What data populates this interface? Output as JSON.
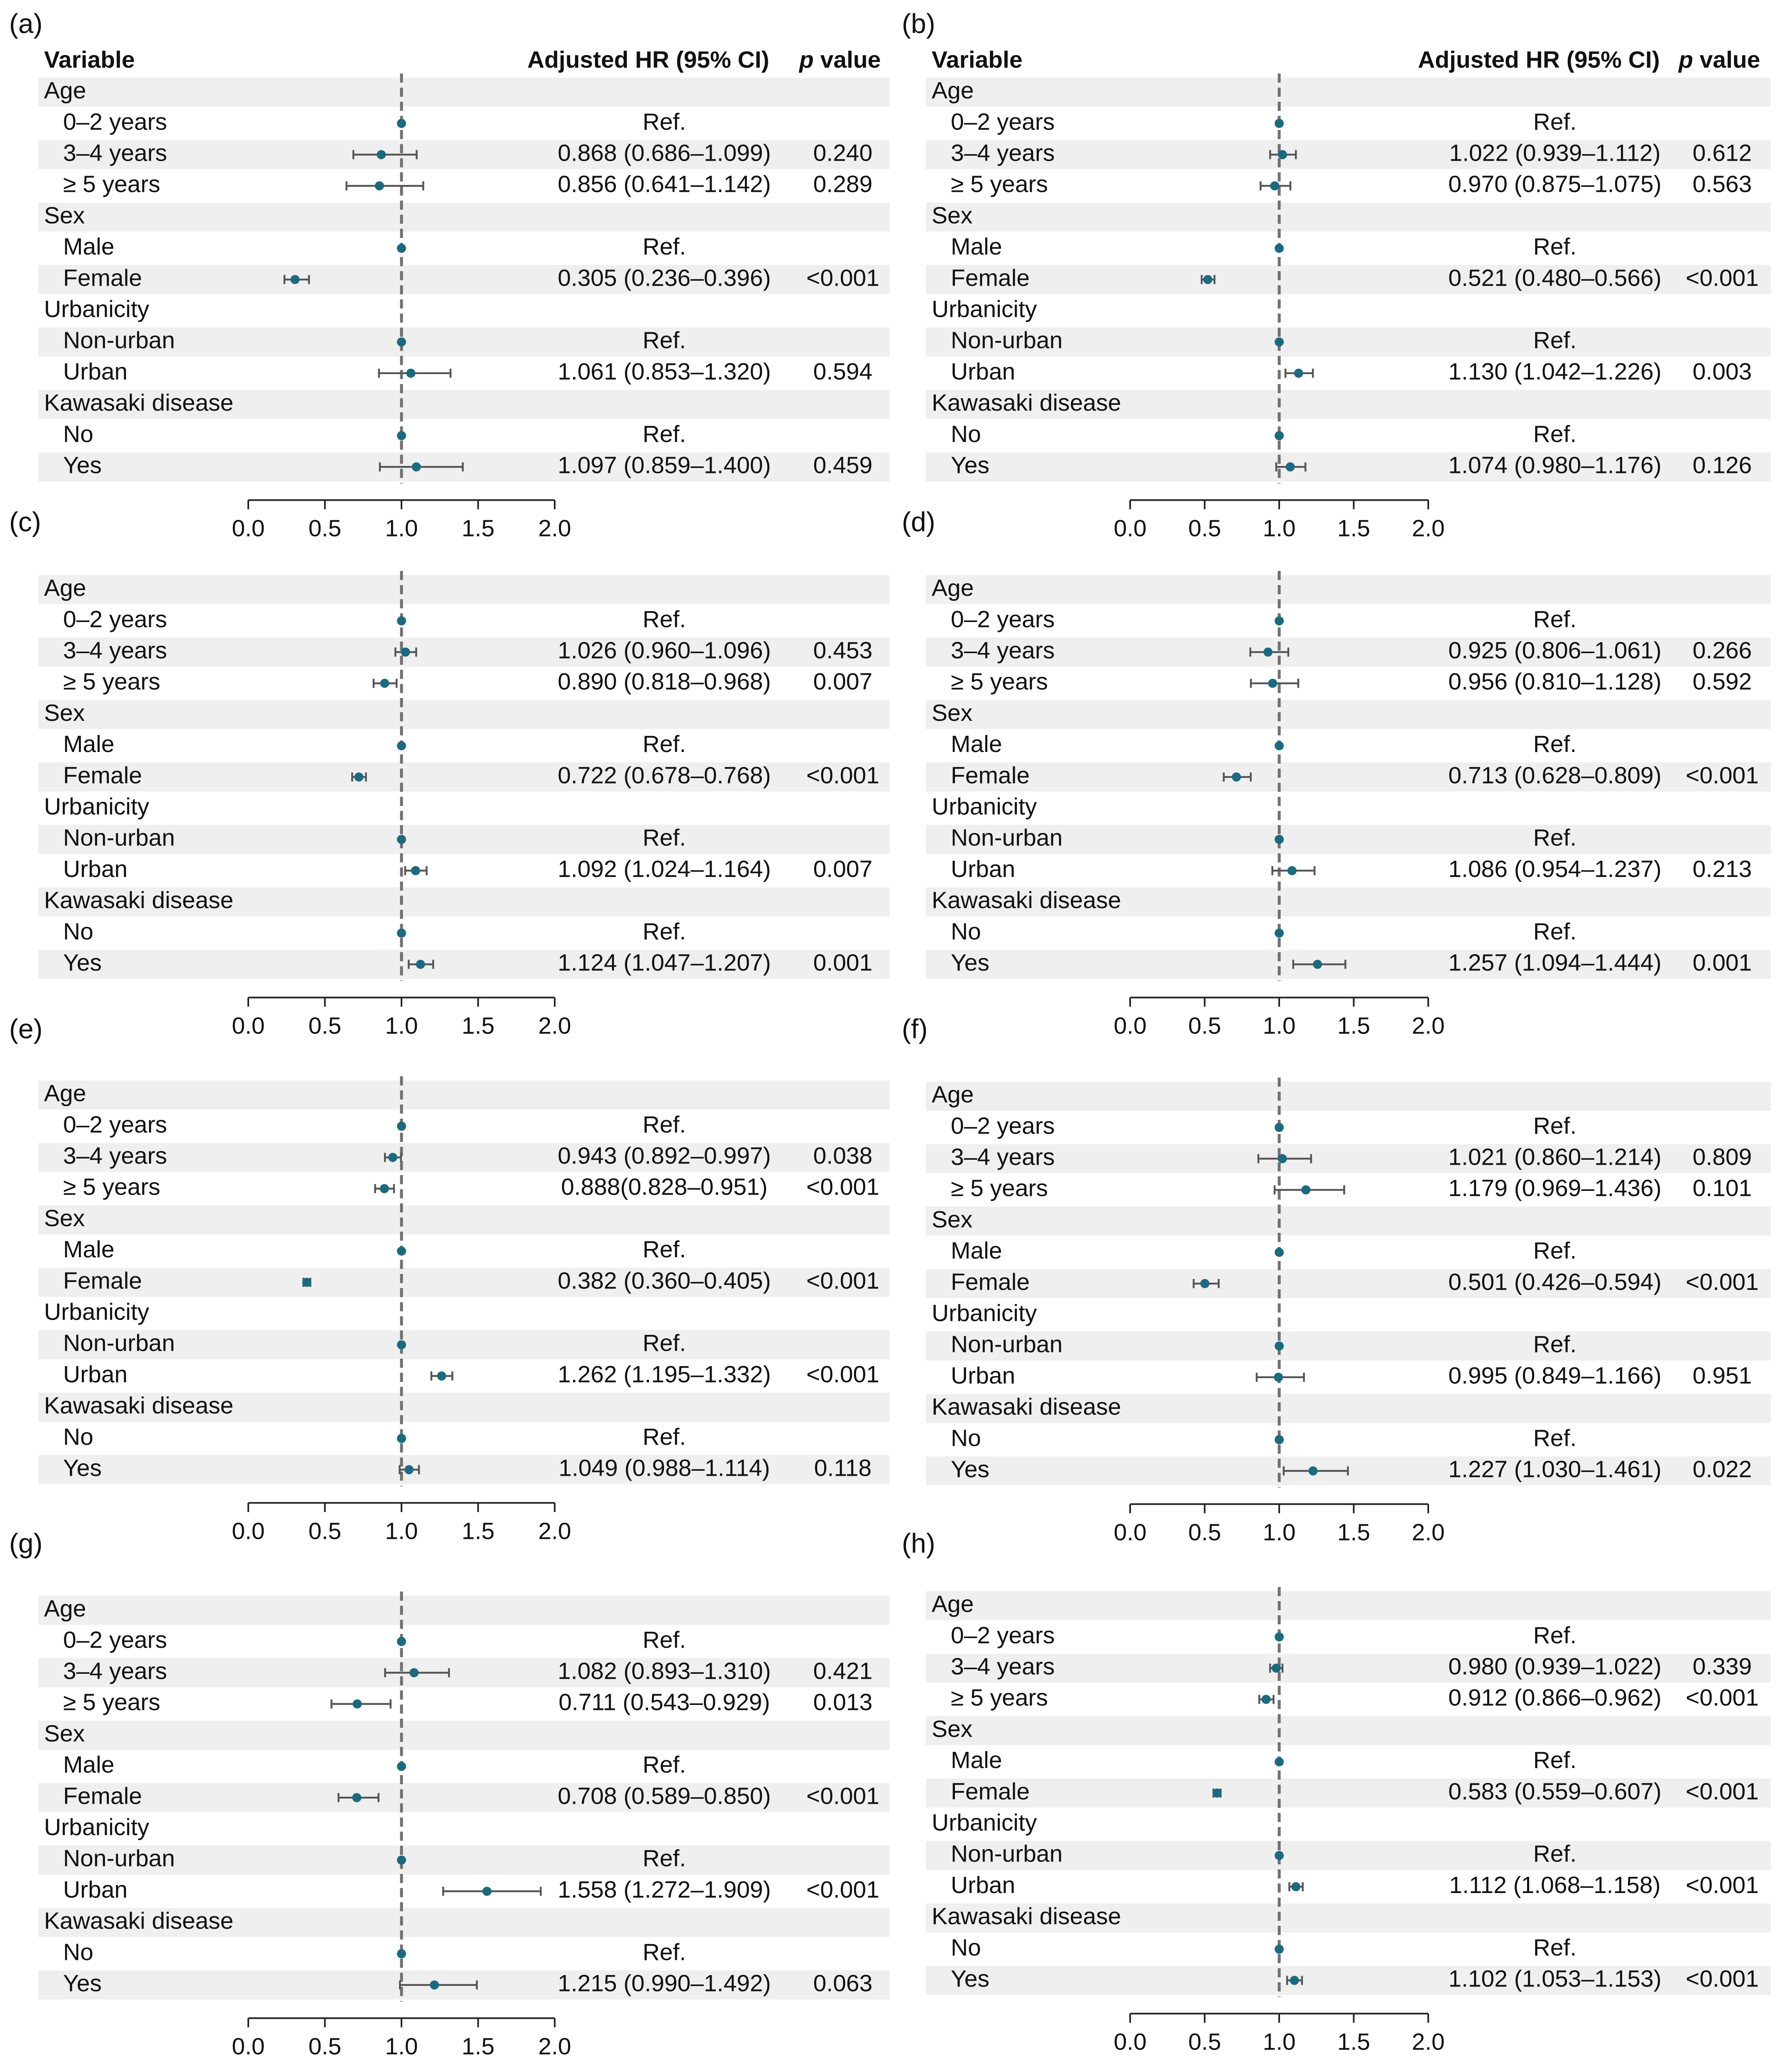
{
  "figure": {
    "colors": {
      "point": "#1b6a80",
      "ci_line": "#555555",
      "ref_line": "#707070",
      "band": "#efefef",
      "axis": "#222222",
      "text": "#111111"
    }
  },
  "chart_data": [
    {
      "panel": "(a)",
      "type": "forest",
      "headers": {
        "variable": "Variable",
        "hr": "Adjusted HR (95% CI)",
        "p_italic": "p",
        "p_rest": " value"
      },
      "xlim": [
        0,
        2
      ],
      "ref_value": 1,
      "xticks": [
        "0.0",
        "0.5",
        "1.0",
        "1.5",
        "2.0"
      ],
      "rows": [
        {
          "label": "Age",
          "group": true
        },
        {
          "label": "0–2 years",
          "hr": 1,
          "hr_text": "Ref.",
          "p": ""
        },
        {
          "label": "3–4 years",
          "hr": 0.868,
          "lo": 0.686,
          "hi": 1.099,
          "hr_text": "0.868 (0.686–1.099)",
          "p": "0.240"
        },
        {
          "label": "≥ 5 years",
          "hr": 0.856,
          "lo": 0.641,
          "hi": 1.142,
          "hr_text": "0.856 (0.641–1.142)",
          "p": "0.289"
        },
        {
          "label": "Sex",
          "group": true
        },
        {
          "label": "Male",
          "hr": 1,
          "hr_text": "Ref.",
          "p": ""
        },
        {
          "label": "Female",
          "hr": 0.305,
          "lo": 0.236,
          "hi": 0.396,
          "hr_text": "0.305 (0.236–0.396)",
          "p": "<0.001"
        },
        {
          "label": "Urbanicity",
          "group": true
        },
        {
          "label": "Non-urban",
          "hr": 1,
          "hr_text": "Ref.",
          "p": ""
        },
        {
          "label": "Urban",
          "hr": 1.061,
          "lo": 0.853,
          "hi": 1.32,
          "hr_text": "1.061 (0.853–1.320)",
          "p": "0.594"
        },
        {
          "label": "Kawasaki disease",
          "group": true
        },
        {
          "label": "No",
          "hr": 1,
          "hr_text": "Ref.",
          "p": ""
        },
        {
          "label": "Yes",
          "hr": 1.097,
          "lo": 0.859,
          "hi": 1.4,
          "hr_text": "1.097 (0.859–1.400)",
          "p": "0.459"
        }
      ]
    },
    {
      "panel": "(b)",
      "type": "forest",
      "headers": {
        "variable": "Variable",
        "hr": "Adjusted HR (95% CI)",
        "p_italic": "p",
        "p_rest": " value"
      },
      "xlim": [
        0,
        2
      ],
      "ref_value": 1,
      "xticks": [
        "0.0",
        "0.5",
        "1.0",
        "1.5",
        "2.0"
      ],
      "rows": [
        {
          "label": "Age",
          "group": true
        },
        {
          "label": "0–2 years",
          "hr": 1,
          "hr_text": "Ref.",
          "p": ""
        },
        {
          "label": "3–4 years",
          "hr": 1.022,
          "lo": 0.939,
          "hi": 1.112,
          "hr_text": "1.022 (0.939–1.112)",
          "p": "0.612"
        },
        {
          "label": "≥ 5 years",
          "hr": 0.97,
          "lo": 0.875,
          "hi": 1.075,
          "hr_text": "0.970 (0.875–1.075)",
          "p": "0.563"
        },
        {
          "label": "Sex",
          "group": true
        },
        {
          "label": "Male",
          "hr": 1,
          "hr_text": "Ref.",
          "p": ""
        },
        {
          "label": "Female",
          "hr": 0.521,
          "lo": 0.48,
          "hi": 0.566,
          "hr_text": "0.521 (0.480–0.566)",
          "p": "<0.001"
        },
        {
          "label": "Urbanicity",
          "group": true
        },
        {
          "label": "Non-urban",
          "hr": 1,
          "hr_text": "Ref.",
          "p": ""
        },
        {
          "label": "Urban",
          "hr": 1.13,
          "lo": 1.042,
          "hi": 1.226,
          "hr_text": "1.130 (1.042–1.226)",
          "p": "0.003"
        },
        {
          "label": "Kawasaki disease",
          "group": true
        },
        {
          "label": "No",
          "hr": 1,
          "hr_text": "Ref.",
          "p": ""
        },
        {
          "label": "Yes",
          "hr": 1.074,
          "lo": 0.98,
          "hi": 1.176,
          "hr_text": "1.074 (0.980–1.176)",
          "p": "0.126"
        }
      ]
    },
    {
      "panel": "(c)",
      "type": "forest",
      "xlim": [
        0,
        2
      ],
      "ref_value": 1,
      "xticks": [
        "0.0",
        "0.5",
        "1.0",
        "1.5",
        "2.0"
      ],
      "rows": [
        {
          "label": "Age",
          "group": true
        },
        {
          "label": "0–2 years",
          "hr": 1,
          "hr_text": "Ref.",
          "p": ""
        },
        {
          "label": "3–4 years",
          "hr": 1.026,
          "lo": 0.96,
          "hi": 1.096,
          "hr_text": "1.026 (0.960–1.096)",
          "p": "0.453"
        },
        {
          "label": "≥ 5 years",
          "hr": 0.89,
          "lo": 0.818,
          "hi": 0.968,
          "hr_text": "0.890 (0.818–0.968)",
          "p": "0.007"
        },
        {
          "label": "Sex",
          "group": true
        },
        {
          "label": "Male",
          "hr": 1,
          "hr_text": "Ref.",
          "p": ""
        },
        {
          "label": "Female",
          "hr": 0.722,
          "lo": 0.678,
          "hi": 0.768,
          "hr_text": "0.722 (0.678–0.768)",
          "p": "<0.001"
        },
        {
          "label": "Urbanicity",
          "group": true
        },
        {
          "label": "Non-urban",
          "hr": 1,
          "hr_text": "Ref.",
          "p": ""
        },
        {
          "label": "Urban",
          "hr": 1.092,
          "lo": 1.024,
          "hi": 1.164,
          "hr_text": "1.092 (1.024–1.164)",
          "p": "0.007"
        },
        {
          "label": "Kawasaki disease",
          "group": true
        },
        {
          "label": "No",
          "hr": 1,
          "hr_text": "Ref.",
          "p": ""
        },
        {
          "label": "Yes",
          "hr": 1.124,
          "lo": 1.047,
          "hi": 1.207,
          "hr_text": "1.124 (1.047–1.207)",
          "p": "0.001"
        }
      ]
    },
    {
      "panel": "(d)",
      "type": "forest",
      "xlim": [
        0,
        2
      ],
      "ref_value": 1,
      "xticks": [
        "0.0",
        "0.5",
        "1.0",
        "1.5",
        "2.0"
      ],
      "rows": [
        {
          "label": "Age",
          "group": true
        },
        {
          "label": "0–2 years",
          "hr": 1,
          "hr_text": "Ref.",
          "p": ""
        },
        {
          "label": "3–4 years",
          "hr": 0.925,
          "lo": 0.806,
          "hi": 1.061,
          "hr_text": "0.925 (0.806–1.061)",
          "p": "0.266"
        },
        {
          "label": "≥ 5 years",
          "hr": 0.956,
          "lo": 0.81,
          "hi": 1.128,
          "hr_text": "0.956 (0.810–1.128)",
          "p": "0.592"
        },
        {
          "label": "Sex",
          "group": true
        },
        {
          "label": "Male",
          "hr": 1,
          "hr_text": "Ref.",
          "p": ""
        },
        {
          "label": "Female",
          "hr": 0.713,
          "lo": 0.628,
          "hi": 0.809,
          "hr_text": "0.713 (0.628–0.809)",
          "p": "<0.001"
        },
        {
          "label": "Urbanicity",
          "group": true
        },
        {
          "label": "Non-urban",
          "hr": 1,
          "hr_text": "Ref.",
          "p": ""
        },
        {
          "label": "Urban",
          "hr": 1.086,
          "lo": 0.954,
          "hi": 1.237,
          "hr_text": "1.086 (0.954–1.237)",
          "p": "0.213"
        },
        {
          "label": "Kawasaki disease",
          "group": true
        },
        {
          "label": "No",
          "hr": 1,
          "hr_text": "Ref.",
          "p": ""
        },
        {
          "label": "Yes",
          "hr": 1.257,
          "lo": 1.094,
          "hi": 1.444,
          "hr_text": "1.257 (1.094–1.444)",
          "p": "0.001"
        }
      ]
    },
    {
      "panel": "(e)",
      "type": "forest",
      "xlim": [
        0,
        2
      ],
      "ref_value": 1,
      "xticks": [
        "0.0",
        "0.5",
        "1.0",
        "1.5",
        "2.0"
      ],
      "rows": [
        {
          "label": "Age",
          "group": true
        },
        {
          "label": "0–2 years",
          "hr": 1,
          "hr_text": "Ref.",
          "p": ""
        },
        {
          "label": "3–4 years",
          "hr": 0.943,
          "lo": 0.892,
          "hi": 0.997,
          "hr_text": "0.943 (0.892–0.997)",
          "p": "0.038"
        },
        {
          "label": "≥ 5 years",
          "hr": 0.888,
          "lo": 0.828,
          "hi": 0.951,
          "hr_text": "0.888(0.828–0.951)",
          "p": "<0.001"
        },
        {
          "label": "Sex",
          "group": true
        },
        {
          "label": "Male",
          "hr": 1,
          "hr_text": "Ref.",
          "p": ""
        },
        {
          "label": "Female",
          "hr": 0.382,
          "lo": 0.36,
          "hi": 0.405,
          "hr_text": "0.382 (0.360–0.405)",
          "p": "<0.001"
        },
        {
          "label": "Urbanicity",
          "group": true
        },
        {
          "label": "Non-urban",
          "hr": 1,
          "hr_text": "Ref.",
          "p": ""
        },
        {
          "label": "Urban",
          "hr": 1.262,
          "lo": 1.195,
          "hi": 1.332,
          "hr_text": "1.262 (1.195–1.332)",
          "p": "<0.001"
        },
        {
          "label": "Kawasaki disease",
          "group": true
        },
        {
          "label": "No",
          "hr": 1,
          "hr_text": "Ref.",
          "p": ""
        },
        {
          "label": "Yes",
          "hr": 1.049,
          "lo": 0.988,
          "hi": 1.114,
          "hr_text": "1.049 (0.988–1.114)",
          "p": "0.118"
        }
      ]
    },
    {
      "panel": "(f)",
      "type": "forest",
      "xlim": [
        0,
        2
      ],
      "ref_value": 1,
      "xticks": [
        "0.0",
        "0.5",
        "1.0",
        "1.5",
        "2.0"
      ],
      "rows": [
        {
          "label": "Age",
          "group": true
        },
        {
          "label": "0–2 years",
          "hr": 1,
          "hr_text": "Ref.",
          "p": ""
        },
        {
          "label": "3–4 years",
          "hr": 1.021,
          "lo": 0.86,
          "hi": 1.214,
          "hr_text": "1.021 (0.860–1.214)",
          "p": "0.809"
        },
        {
          "label": "≥ 5 years",
          "hr": 1.179,
          "lo": 0.969,
          "hi": 1.436,
          "hr_text": "1.179 (0.969–1.436)",
          "p": "0.101"
        },
        {
          "label": "Sex",
          "group": true
        },
        {
          "label": "Male",
          "hr": 1,
          "hr_text": "Ref.",
          "p": ""
        },
        {
          "label": "Female",
          "hr": 0.501,
          "lo": 0.426,
          "hi": 0.594,
          "hr_text": "0.501 (0.426–0.594)",
          "p": "<0.001"
        },
        {
          "label": "Urbanicity",
          "group": true
        },
        {
          "label": "Non-urban",
          "hr": 1,
          "hr_text": "Ref.",
          "p": ""
        },
        {
          "label": "Urban",
          "hr": 0.995,
          "lo": 0.849,
          "hi": 1.166,
          "hr_text": "0.995 (0.849–1.166)",
          "p": "0.951"
        },
        {
          "label": "Kawasaki disease",
          "group": true
        },
        {
          "label": "No",
          "hr": 1,
          "hr_text": "Ref.",
          "p": ""
        },
        {
          "label": "Yes",
          "hr": 1.227,
          "lo": 1.03,
          "hi": 1.461,
          "hr_text": "1.227 (1.030–1.461)",
          "p": "0.022"
        }
      ]
    },
    {
      "panel": "(g)",
      "type": "forest",
      "xlim": [
        0,
        2
      ],
      "ref_value": 1,
      "xticks": [
        "0.0",
        "0.5",
        "1.0",
        "1.5",
        "2.0"
      ],
      "rows": [
        {
          "label": "Age",
          "group": true
        },
        {
          "label": "0–2 years",
          "hr": 1,
          "hr_text": "Ref.",
          "p": ""
        },
        {
          "label": "3–4 years",
          "hr": 1.082,
          "lo": 0.893,
          "hi": 1.31,
          "hr_text": "1.082 (0.893–1.310)",
          "p": "0.421"
        },
        {
          "label": "≥ 5 years",
          "hr": 0.711,
          "lo": 0.543,
          "hi": 0.929,
          "hr_text": "0.711 (0.543–0.929)",
          "p": "0.013"
        },
        {
          "label": "Sex",
          "group": true
        },
        {
          "label": "Male",
          "hr": 1,
          "hr_text": "Ref.",
          "p": ""
        },
        {
          "label": "Female",
          "hr": 0.708,
          "lo": 0.589,
          "hi": 0.85,
          "hr_text": "0.708 (0.589–0.850)",
          "p": "<0.001"
        },
        {
          "label": "Urbanicity",
          "group": true
        },
        {
          "label": "Non-urban",
          "hr": 1,
          "hr_text": "Ref.",
          "p": ""
        },
        {
          "label": "Urban",
          "hr": 1.558,
          "lo": 1.272,
          "hi": 1.909,
          "hr_text": "1.558 (1.272–1.909)",
          "p": "<0.001"
        },
        {
          "label": "Kawasaki disease",
          "group": true
        },
        {
          "label": "No",
          "hr": 1,
          "hr_text": "Ref.",
          "p": ""
        },
        {
          "label": "Yes",
          "hr": 1.215,
          "lo": 0.99,
          "hi": 1.492,
          "hr_text": "1.215 (0.990–1.492)",
          "p": "0.063"
        }
      ]
    },
    {
      "panel": "(h)",
      "type": "forest",
      "xlim": [
        0,
        2
      ],
      "ref_value": 1,
      "xticks": [
        "0.0",
        "0.5",
        "1.0",
        "1.5",
        "2.0"
      ],
      "rows": [
        {
          "label": "Age",
          "group": true
        },
        {
          "label": "0–2 years",
          "hr": 1,
          "hr_text": "Ref.",
          "p": ""
        },
        {
          "label": "3–4 years",
          "hr": 0.98,
          "lo": 0.939,
          "hi": 1.022,
          "hr_text": "0.980 (0.939–1.022)",
          "p": "0.339"
        },
        {
          "label": "≥ 5 years",
          "hr": 0.912,
          "lo": 0.866,
          "hi": 0.962,
          "hr_text": "0.912 (0.866–0.962)",
          "p": "<0.001"
        },
        {
          "label": "Sex",
          "group": true
        },
        {
          "label": "Male",
          "hr": 1,
          "hr_text": "Ref.",
          "p": ""
        },
        {
          "label": "Female",
          "hr": 0.583,
          "lo": 0.559,
          "hi": 0.607,
          "hr_text": "0.583 (0.559–0.607)",
          "p": "<0.001"
        },
        {
          "label": "Urbanicity",
          "group": true
        },
        {
          "label": "Non-urban",
          "hr": 1,
          "hr_text": "Ref.",
          "p": ""
        },
        {
          "label": "Urban",
          "hr": 1.112,
          "lo": 1.068,
          "hi": 1.158,
          "hr_text": "1.112 (1.068–1.158)",
          "p": "<0.001"
        },
        {
          "label": "Kawasaki disease",
          "group": true
        },
        {
          "label": "No",
          "hr": 1,
          "hr_text": "Ref.",
          "p": ""
        },
        {
          "label": "Yes",
          "hr": 1.102,
          "lo": 1.053,
          "hi": 1.153,
          "hr_text": "1.102 (1.053–1.153)",
          "p": "<0.001"
        }
      ]
    }
  ]
}
